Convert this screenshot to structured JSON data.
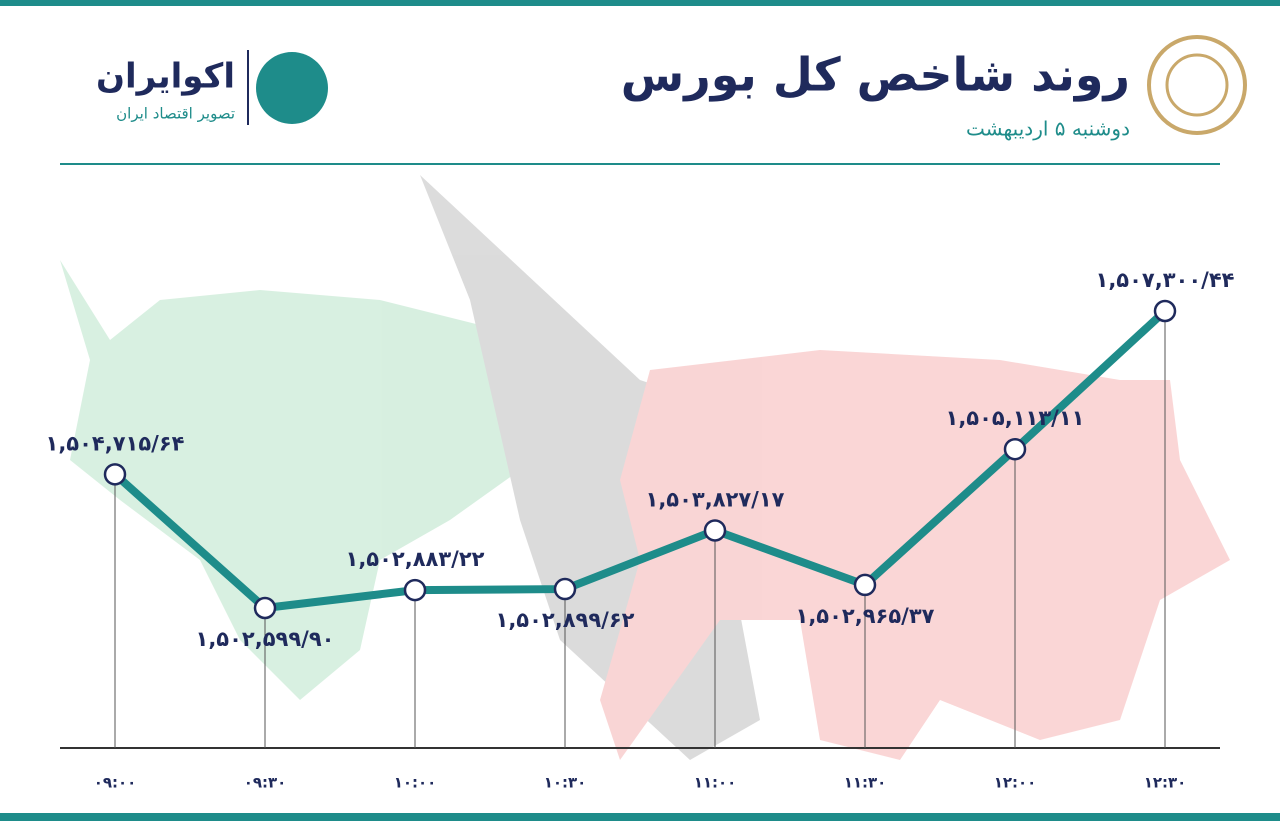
{
  "header": {
    "title": "روند شاخص کل بورس",
    "subtitle": "دوشنبه ۵ اردیبهشت",
    "brand": "اکوایران",
    "brand_tagline": "تصویر اقتصاد ایران"
  },
  "chart_data": {
    "type": "line",
    "categories": [
      "۰۹:۰۰",
      "۰۹:۳۰",
      "۱۰:۰۰",
      "۱۰:۳۰",
      "۱۱:۰۰",
      "۱۱:۳۰",
      "۱۲:۰۰",
      "۱۲:۳۰"
    ],
    "values": [
      1504715.64,
      1502599.9,
      1502883.22,
      1502899.62,
      1503827.17,
      1502965.37,
      1505113.11,
      1507300.44
    ],
    "value_labels": [
      "۱,۵۰۴,۷۱۵/۶۴",
      "۱,۵۰۲,۵۹۹/۹۰",
      "۱,۵۰۲,۸۸۳/۲۲",
      "۱,۵۰۲,۸۹۹/۶۲",
      "۱,۵۰۳,۸۲۷/۱۷",
      "۱,۵۰۲,۹۶۵/۳۷",
      "۱,۵۰۵,۱۱۳/۱۱",
      "۱,۵۰۷,۳۰۰/۴۴"
    ],
    "color": "#1e8c8a"
  }
}
